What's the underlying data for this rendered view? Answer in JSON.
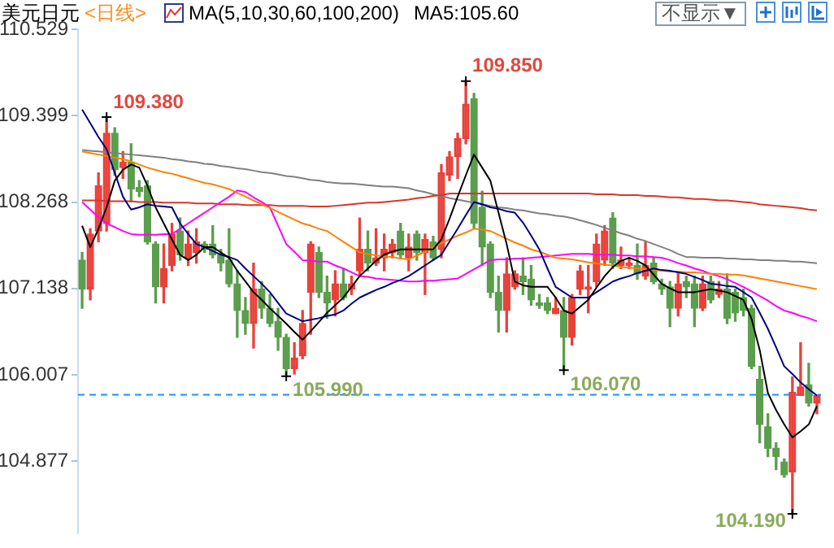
{
  "chart_data": {
    "type": "candlestick",
    "title": "美元日元",
    "subtitle": "<日线>",
    "categories": [
      null,
      null,
      null,
      null,
      null,
      null,
      null,
      null,
      null,
      null,
      null,
      null,
      null,
      null,
      null,
      null,
      null,
      null,
      null,
      null,
      null,
      null,
      null,
      null,
      null,
      null,
      null,
      null,
      null,
      null,
      null,
      null,
      null,
      null,
      null,
      null,
      null,
      null,
      null,
      null,
      null,
      null,
      null,
      null,
      null,
      null,
      null,
      null,
      null,
      null,
      null,
      null,
      null,
      null,
      null,
      null,
      null,
      null,
      null,
      null,
      null,
      null,
      null,
      null,
      null,
      null,
      null,
      null,
      null,
      null,
      null,
      null,
      null,
      null,
      null,
      null,
      null,
      null,
      null,
      null,
      null,
      null,
      null,
      null,
      null,
      null,
      null,
      null,
      null,
      null,
      null
    ],
    "ohlc": [
      [
        107.51,
        107.61,
        106.88,
        107.13
      ],
      [
        107.13,
        107.92,
        106.99,
        107.85
      ],
      [
        107.89,
        108.65,
        107.75,
        108.48
      ],
      [
        107.99,
        109.38,
        107.89,
        109.17
      ],
      [
        109.17,
        109.24,
        108.62,
        108.69
      ],
      [
        108.72,
        108.93,
        108.58,
        108.79
      ],
      [
        108.79,
        109.03,
        108.27,
        108.44
      ],
      [
        108.46,
        108.55,
        108.34,
        108.41
      ],
      [
        108.48,
        108.55,
        107.72,
        107.75
      ],
      [
        107.72,
        107.75,
        106.95,
        107.16
      ],
      [
        107.16,
        107.72,
        106.95,
        107.4
      ],
      [
        107.44,
        107.99,
        107.37,
        107.85
      ],
      [
        107.89,
        108.06,
        107.51,
        107.58
      ],
      [
        107.54,
        107.89,
        107.44,
        107.72
      ],
      [
        107.61,
        107.92,
        107.47,
        107.75
      ],
      [
        107.72,
        107.75,
        107.61,
        107.65
      ],
      [
        107.72,
        107.96,
        107.54,
        107.58
      ],
      [
        107.58,
        107.65,
        107.37,
        107.47
      ],
      [
        107.51,
        107.92,
        107.16,
        107.2
      ],
      [
        107.2,
        107.37,
        106.5,
        106.85
      ],
      [
        106.85,
        107.02,
        106.54,
        106.68
      ],
      [
        106.68,
        107.47,
        106.36,
        107.13
      ],
      [
        107.13,
        107.23,
        106.75,
        106.88
      ],
      [
        106.88,
        107.06,
        106.64,
        106.68
      ],
      [
        106.71,
        106.88,
        106.33,
        106.5
      ],
      [
        106.5,
        106.54,
        105.99,
        106.09
      ],
      [
        106.09,
        106.43,
        106.02,
        106.23
      ],
      [
        106.26,
        106.85,
        106.22,
        106.68
      ],
      [
        107.09,
        107.75,
        106.54,
        107.72
      ],
      [
        107.61,
        107.68,
        107.02,
        107.09
      ],
      [
        107.09,
        107.3,
        106.75,
        106.95
      ],
      [
        106.99,
        107.37,
        106.78,
        107.2
      ],
      [
        107.2,
        107.4,
        106.99,
        107.02
      ],
      [
        107.13,
        107.3,
        107.06,
        107.2
      ],
      [
        107.37,
        108.06,
        107.3,
        107.65
      ],
      [
        107.65,
        107.89,
        107.37,
        107.47
      ],
      [
        107.47,
        107.92,
        107.44,
        107.54
      ],
      [
        107.54,
        107.85,
        107.37,
        107.65
      ],
      [
        107.61,
        107.78,
        107.54,
        107.72
      ],
      [
        107.89,
        107.99,
        107.54,
        107.58
      ],
      [
        107.54,
        107.85,
        107.37,
        107.68
      ],
      [
        107.85,
        107.89,
        107.51,
        107.61
      ],
      [
        107.61,
        107.85,
        107.06,
        107.78
      ],
      [
        107.75,
        107.82,
        107.51,
        107.54
      ],
      [
        107.65,
        108.76,
        107.54,
        108.65
      ],
      [
        108.62,
        108.93,
        108.55,
        108.86
      ],
      [
        108.86,
        109.17,
        108.58,
        109.1
      ],
      [
        109.1,
        109.85,
        109.03,
        109.55
      ],
      [
        109.62,
        109.69,
        107.92,
        107.99
      ],
      [
        108.2,
        108.41,
        107.44,
        107.68
      ],
      [
        107.72,
        107.75,
        107.02,
        107.09
      ],
      [
        107.09,
        107.3,
        106.57,
        106.85
      ],
      [
        106.85,
        107.54,
        106.57,
        107.33
      ],
      [
        107.16,
        107.37,
        107.13,
        107.33
      ],
      [
        107.3,
        107.54,
        107.06,
        107.23
      ],
      [
        107.26,
        107.44,
        106.92,
        106.99
      ],
      [
        106.95,
        107.06,
        106.88,
        106.92
      ],
      [
        106.95,
        107.02,
        106.81,
        106.85
      ],
      [
        106.81,
        107.02,
        106.81,
        106.88
      ],
      [
        106.85,
        107.02,
        106.07,
        106.5
      ],
      [
        106.5,
        107.06,
        106.4,
        107.02
      ],
      [
        107.13,
        107.44,
        107.06,
        107.37
      ],
      [
        107.13,
        107.44,
        106.82,
        107.16
      ],
      [
        107.23,
        107.85,
        107.16,
        107.72
      ],
      [
        107.51,
        107.96,
        107.44,
        107.89
      ],
      [
        108.06,
        108.13,
        107.4,
        107.47
      ],
      [
        107.44,
        107.68,
        107.4,
        107.51
      ],
      [
        107.44,
        107.54,
        107.4,
        107.47
      ],
      [
        107.44,
        107.72,
        107.26,
        107.33
      ],
      [
        107.3,
        107.75,
        107.26,
        107.44
      ],
      [
        107.47,
        107.54,
        107.2,
        107.23
      ],
      [
        107.2,
        107.26,
        107.06,
        107.13
      ],
      [
        107.16,
        107.23,
        106.64,
        106.88
      ],
      [
        106.88,
        107.33,
        106.78,
        107.2
      ],
      [
        107.23,
        107.3,
        107.02,
        107.16
      ],
      [
        107.2,
        107.3,
        106.64,
        106.88
      ],
      [
        106.88,
        107.3,
        106.85,
        107.2
      ],
      [
        107.23,
        107.3,
        106.95,
        106.99
      ],
      [
        107.06,
        107.23,
        107.02,
        107.13
      ],
      [
        107.13,
        107.33,
        106.68,
        106.75
      ],
      [
        107.09,
        107.13,
        106.71,
        106.82
      ],
      [
        107.02,
        107.13,
        106.78,
        106.85
      ],
      [
        106.88,
        106.92,
        106.09,
        106.12
      ],
      [
        105.95,
        106.12,
        105.12,
        105.36
      ],
      [
        105.33,
        105.5,
        104.94,
        105.05
      ],
      [
        105.05,
        105.12,
        104.77,
        104.94
      ],
      [
        104.87,
        104.91,
        104.67,
        104.7
      ],
      [
        104.74,
        105.98,
        104.19,
        105.78
      ],
      [
        105.74,
        106.43,
        105.74,
        105.85
      ],
      [
        105.88,
        106.16,
        105.6,
        105.64
      ],
      [
        105.64,
        105.74,
        105.5,
        105.74
      ]
    ],
    "colors": [
      "#5b9e4d",
      "#e8413a",
      "#e8413a",
      "#e8413a",
      "#5b9e4d",
      "#e8413a",
      "#5b9e4d",
      "#5b9e4d",
      "#5b9e4d",
      "#5b9e4d",
      "#e8413a",
      "#e8413a",
      "#5b9e4d",
      "#e8413a",
      "#e8413a",
      "#5b9e4d",
      "#5b9e4d",
      "#5b9e4d",
      "#5b9e4d",
      "#5b9e4d",
      "#5b9e4d",
      "#e8413a",
      "#5b9e4d",
      "#5b9e4d",
      "#5b9e4d",
      "#5b9e4d",
      "#e8413a",
      "#e8413a",
      "#e8413a",
      "#5b9e4d",
      "#5b9e4d",
      "#e8413a",
      "#5b9e4d",
      "#e8413a",
      "#e8413a",
      "#5b9e4d",
      "#e8413a",
      "#e8413a",
      "#e8413a",
      "#5b9e4d",
      "#e8413a",
      "#5b9e4d",
      "#e8413a",
      "#5b9e4d",
      "#e8413a",
      "#e8413a",
      "#e8413a",
      "#e8413a",
      "#5b9e4d",
      "#5b9e4d",
      "#5b9e4d",
      "#5b9e4d",
      "#e8413a",
      "#e8413a",
      "#5b9e4d",
      "#5b9e4d",
      "#5b9e4d",
      "#5b9e4d",
      "#e8413a",
      "#5b9e4d",
      "#e8413a",
      "#e8413a",
      "#e8413a",
      "#e8413a",
      "#e8413a",
      "#5b9e4d",
      "#e8413a",
      "#e8413a",
      "#5b9e4d",
      "#e8413a",
      "#5b9e4d",
      "#5b9e4d",
      "#5b9e4d",
      "#e8413a",
      "#5b9e4d",
      "#5b9e4d",
      "#e8413a",
      "#5b9e4d",
      "#e8413a",
      "#5b9e4d",
      "#5b9e4d",
      "#5b9e4d",
      "#5b9e4d",
      "#5b9e4d",
      "#5b9e4d",
      "#5b9e4d",
      "#5b9e4d",
      "#e8413a",
      "#e8413a",
      "#5b9e4d",
      "#e8413a"
    ],
    "series": [
      {
        "type": "line",
        "color": "#000000",
        "values": [
          107.96,
          107.68,
          107.92,
          108.2,
          108.55,
          108.69,
          108.76,
          108.72,
          108.48,
          108.2,
          107.99,
          107.78,
          107.58,
          107.51,
          107.58,
          107.68,
          107.68,
          107.61,
          107.54,
          107.37,
          107.23,
          107.09,
          106.99,
          106.88,
          106.78,
          106.68,
          106.57,
          106.47,
          106.58,
          106.7,
          106.82,
          106.92,
          107.02,
          107.16,
          107.3,
          107.4,
          107.5,
          107.58,
          107.62,
          107.65,
          107.65,
          107.65,
          107.65,
          107.65,
          107.78,
          108.05,
          108.34,
          108.62,
          108.89,
          108.72,
          108.55,
          108.13,
          107.72,
          107.23,
          107.18,
          107.16,
          107.16,
          107.16,
          107.02,
          106.85,
          106.81,
          106.9,
          106.99,
          107.15,
          107.3,
          107.42,
          107.5,
          107.54,
          107.5,
          107.44,
          107.32,
          107.2,
          107.14,
          107.09,
          107.09,
          107.09,
          107.11,
          107.13,
          107.11,
          107.09,
          107.04,
          106.99,
          106.74,
          106.33,
          105.77,
          105.55,
          105.36,
          105.19,
          105.27,
          105.36,
          105.6
        ]
      },
      {
        "type": "line",
        "color": "#000080",
        "values": [
          109.48,
          109.3,
          109.12,
          108.96,
          108.65,
          108.34,
          108.17,
          108.2,
          108.24,
          108.22,
          108.21,
          108.2,
          107.99,
          107.85,
          107.72,
          107.68,
          107.63,
          107.58,
          107.55,
          107.51,
          107.4,
          107.3,
          107.2,
          107.09,
          106.95,
          106.81,
          106.76,
          106.71,
          106.73,
          106.75,
          106.78,
          106.8,
          106.85,
          106.94,
          107.02,
          107.07,
          107.12,
          107.16,
          107.21,
          107.25,
          107.3,
          107.37,
          107.44,
          107.51,
          107.58,
          107.75,
          107.92,
          108.1,
          108.27,
          108.24,
          108.2,
          108.18,
          108.15,
          108.13,
          108.0,
          107.83,
          107.65,
          107.4,
          107.16,
          107.09,
          107.02,
          107.02,
          107.02,
          107.09,
          107.16,
          107.23,
          107.27,
          107.3,
          107.34,
          107.37,
          107.4,
          107.38,
          107.37,
          107.35,
          107.33,
          107.29,
          107.25,
          107.2,
          107.19,
          107.17,
          107.16,
          107.09,
          107.02,
          106.82,
          106.61,
          106.37,
          106.12,
          106.02,
          105.91,
          105.82,
          105.74
        ]
      },
      {
        "type": "line",
        "color": "#ff8000",
        "values": [
          108.93,
          108.91,
          108.89,
          108.87,
          108.85,
          108.83,
          108.8,
          108.76,
          108.72,
          108.69,
          108.66,
          108.64,
          108.61,
          108.58,
          108.55,
          108.52,
          108.5,
          108.47,
          108.44,
          108.39,
          108.34,
          108.29,
          108.24,
          108.19,
          108.14,
          108.09,
          108.04,
          107.99,
          107.96,
          107.92,
          107.89,
          107.82,
          107.75,
          107.68,
          107.61,
          107.59,
          107.57,
          107.56,
          107.55,
          107.53,
          107.52,
          107.57,
          107.62,
          107.68,
          107.73,
          107.78,
          107.83,
          107.87,
          107.92,
          107.91,
          107.89,
          107.84,
          107.79,
          107.74,
          107.7,
          107.65,
          107.62,
          107.58,
          107.54,
          107.53,
          107.52,
          107.5,
          107.48,
          107.47,
          107.45,
          107.44,
          107.42,
          107.41,
          107.4,
          107.39,
          107.38,
          107.37,
          107.36,
          107.36,
          107.35,
          107.35,
          107.34,
          107.33,
          107.33,
          107.32,
          107.32,
          107.31,
          107.29,
          107.27,
          107.25,
          107.23,
          107.21,
          107.19,
          107.17,
          107.15,
          107.13
        ]
      },
      {
        "type": "line",
        "color": "#ff00ff",
        "values": [
          108.27,
          108.17,
          108.07,
          107.99,
          107.94,
          107.89,
          107.85,
          107.84,
          107.84,
          107.84,
          107.85,
          107.85,
          107.92,
          107.99,
          108.06,
          108.13,
          108.2,
          108.27,
          108.34,
          108.42,
          108.4,
          108.33,
          108.27,
          108.2,
          107.96,
          107.72,
          107.62,
          107.51,
          107.5,
          107.49,
          107.49,
          107.44,
          107.4,
          107.35,
          107.3,
          107.29,
          107.27,
          107.26,
          107.25,
          107.24,
          107.23,
          107.23,
          107.24,
          107.24,
          107.25,
          107.26,
          107.27,
          107.33,
          107.39,
          107.45,
          107.51,
          107.52,
          107.52,
          107.53,
          107.53,
          107.54,
          107.55,
          107.56,
          107.57,
          107.58,
          107.59,
          107.59,
          107.59,
          107.58,
          107.58,
          107.58,
          107.57,
          107.57,
          107.56,
          107.56,
          107.55,
          107.54,
          107.51,
          107.47,
          107.44,
          107.4,
          107.37,
          107.33,
          107.3,
          107.26,
          107.21,
          107.16,
          107.1,
          107.04,
          106.98,
          106.91,
          106.85,
          106.82,
          106.78,
          106.75,
          106.71
        ]
      },
      {
        "type": "line",
        "color": "#d9362b",
        "values": [
          108.29,
          108.29,
          108.29,
          108.28,
          108.28,
          108.28,
          108.28,
          108.27,
          108.27,
          108.27,
          108.26,
          108.26,
          108.26,
          108.26,
          108.25,
          108.25,
          108.25,
          108.24,
          108.24,
          108.24,
          108.23,
          108.23,
          108.23,
          108.23,
          108.22,
          108.22,
          108.22,
          108.22,
          108.21,
          108.21,
          108.21,
          108.22,
          108.23,
          108.24,
          108.25,
          108.26,
          108.26,
          108.27,
          108.28,
          108.29,
          108.3,
          108.32,
          108.33,
          108.35,
          108.36,
          108.38,
          108.38,
          108.38,
          108.38,
          108.38,
          108.38,
          108.38,
          108.38,
          108.38,
          108.38,
          108.38,
          108.38,
          108.38,
          108.38,
          108.38,
          108.38,
          108.38,
          108.38,
          108.37,
          108.37,
          108.37,
          108.36,
          108.36,
          108.36,
          108.35,
          108.35,
          108.34,
          108.33,
          108.33,
          108.32,
          108.31,
          108.31,
          108.3,
          108.29,
          108.29,
          108.28,
          108.27,
          108.26,
          108.24,
          108.23,
          108.22,
          108.21,
          108.2,
          108.19,
          108.17,
          108.16
        ]
      },
      {
        "type": "line",
        "color": "#808080",
        "values": [
          108.95,
          108.94,
          108.93,
          108.92,
          108.91,
          108.9,
          108.89,
          108.88,
          108.87,
          108.86,
          108.85,
          108.83,
          108.82,
          108.8,
          108.79,
          108.77,
          108.76,
          108.74,
          108.73,
          108.71,
          108.7,
          108.68,
          108.66,
          108.65,
          108.63,
          108.61,
          108.6,
          108.58,
          108.56,
          108.55,
          108.53,
          108.52,
          108.51,
          108.51,
          108.5,
          108.49,
          108.48,
          108.47,
          108.47,
          108.46,
          108.45,
          108.42,
          108.4,
          108.37,
          108.35,
          108.32,
          108.3,
          108.28,
          108.26,
          108.24,
          108.22,
          108.2,
          108.19,
          108.17,
          108.16,
          108.14,
          108.12,
          108.11,
          108.09,
          108.08,
          108.06,
          108.03,
          108.0,
          107.97,
          107.93,
          107.9,
          107.86,
          107.83,
          107.79,
          107.76,
          107.72,
          107.68,
          107.64,
          107.59,
          107.55,
          107.55,
          107.54,
          107.54,
          107.54,
          107.53,
          107.53,
          107.52,
          107.52,
          107.51,
          107.51,
          107.5,
          107.5,
          107.49,
          107.49,
          107.48,
          107.47
        ]
      }
    ],
    "ylim": [
      103.94,
      110.529
    ],
    "yticks": [
      104.877,
      106.007,
      107.138,
      108.268,
      109.399,
      110.529
    ],
    "tick_labels": "y",
    "marker": "none",
    "line_style": "solid",
    "ref_lines": [
      {
        "axis": "y",
        "value": 105.75,
        "color": "#1e8fff",
        "line_style": "dashed"
      }
    ],
    "annotations": [
      "MA(5,10,30,60,100,200)",
      "MA5:105.60",
      "不显示▼",
      "109.380",
      "109.850",
      "105.990",
      "106.070",
      "104.190"
    ]
  }
}
